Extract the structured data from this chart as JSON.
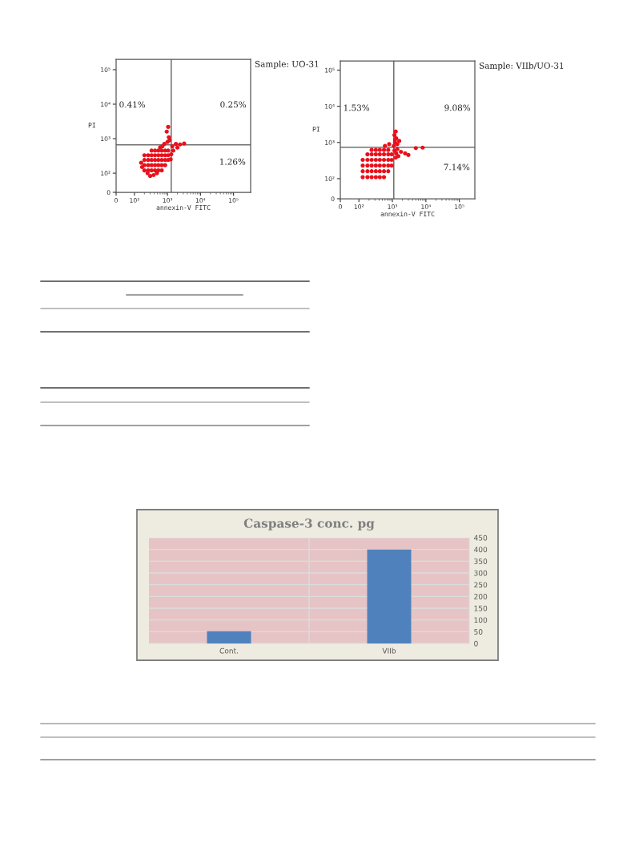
{
  "chart_data": [
    {
      "type": "scatter",
      "xlabel": "annexin-V FITC",
      "ylabel": "PI",
      "log": "xy",
      "marker": "circle",
      "xlim": [
        0,
        330000
      ],
      "ylim": [
        0,
        200000
      ],
      "xticks": [
        0,
        {
          "value": 100,
          "label": "10²"
        },
        {
          "value": 1000,
          "label": "10³"
        },
        {
          "value": 10000,
          "label": "10⁴"
        },
        {
          "value": 100000,
          "label": "10⁵"
        }
      ],
      "yticks": [
        0,
        {
          "value": 100,
          "label": "10²"
        },
        {
          "value": 1000,
          "label": "10³"
        },
        {
          "value": 10000,
          "label": "10⁴"
        },
        {
          "value": 100000,
          "label": "10⁵"
        }
      ],
      "series": [
        {
          "color": "#e8101c",
          "x": [
            200,
            260,
            330,
            420,
            530,
            670,
            200,
            260,
            330,
            420,
            530,
            670,
            850,
            200,
            260,
            330,
            420,
            530,
            670,
            850,
            1050,
            200,
            260,
            330,
            420,
            530,
            670,
            850,
            1050,
            330,
            420,
            530,
            670,
            850,
            1050,
            300,
            380,
            480,
            250,
            160,
            170,
            700,
            800,
            1000,
            1100,
            950,
            1050,
            1150,
            600,
            1400,
            1800,
            2400,
            3200,
            1500,
            1300,
            2000,
            1250
          ],
          "values": [
            120,
            120,
            120,
            120,
            120,
            120,
            170,
            170,
            170,
            170,
            170,
            170,
            170,
            240,
            240,
            240,
            240,
            240,
            240,
            240,
            240,
            330,
            330,
            330,
            330,
            330,
            330,
            330,
            330,
            450,
            450,
            450,
            450,
            450,
            450,
            85,
            90,
            100,
            100,
            200,
            150,
            600,
            700,
            800,
            1100,
            1600,
            2200,
            900,
            560,
            600,
            700,
            680,
            720,
            450,
            350,
            550,
            250
          ]
        }
      ],
      "ref_lines": [
        {
          "axis": "x",
          "value": 1300,
          "color": "#707070"
        },
        {
          "axis": "y",
          "value": 660,
          "color": "#707070"
        }
      ],
      "annotations": [
        "Sample: UO-31",
        "0.41%",
        "0.25%",
        "1.26%"
      ]
    },
    {
      "type": "scatter",
      "xlabel": "annexin-V FITC",
      "ylabel": "PI",
      "log": "xy",
      "marker": "circle",
      "xlim": [
        0,
        290000
      ],
      "ylim": [
        0,
        180000
      ],
      "xticks": [
        0,
        {
          "value": 100,
          "label": "10²"
        },
        {
          "value": 1000,
          "label": "10³"
        },
        {
          "value": 10000,
          "label": "10⁴"
        },
        {
          "value": 100000,
          "label": "10⁵"
        }
      ],
      "yticks": [
        0,
        {
          "value": 100,
          "label": "10²"
        },
        {
          "value": 1000,
          "label": "10³"
        },
        {
          "value": 10000,
          "label": "10⁴"
        },
        {
          "value": 100000,
          "label": "10⁵"
        }
      ],
      "series": [
        {
          "color": "#e8101c",
          "x": [
            130,
            180,
            240,
            320,
            420,
            560,
            130,
            180,
            240,
            320,
            420,
            560,
            750,
            130,
            180,
            240,
            320,
            420,
            560,
            750,
            950,
            130,
            180,
            240,
            320,
            420,
            560,
            750,
            950,
            180,
            240,
            320,
            420,
            560,
            750,
            950,
            240,
            320,
            420,
            560,
            750,
            1100,
            1200,
            1300,
            1150,
            1400,
            1250,
            1600,
            1200,
            1150,
            1300,
            1500,
            1250,
            1800,
            2400,
            3000,
            1400,
            5000,
            8000,
            600,
            800
          ],
          "values": [
            110,
            110,
            110,
            110,
            110,
            110,
            160,
            160,
            160,
            160,
            160,
            160,
            160,
            230,
            230,
            230,
            230,
            230,
            230,
            230,
            230,
            330,
            330,
            330,
            330,
            330,
            330,
            330,
            330,
            470,
            470,
            470,
            470,
            470,
            470,
            470,
            620,
            620,
            620,
            620,
            620,
            800,
            1000,
            1300,
            1600,
            900,
            2000,
            1100,
            1200,
            600,
            500,
            420,
            380,
            550,
            500,
            450,
            650,
            700,
            720,
            800,
            900
          ]
        }
      ],
      "ref_lines": [
        {
          "axis": "x",
          "value": 1100,
          "color": "#707070"
        },
        {
          "axis": "y",
          "value": 740,
          "color": "#707070"
        }
      ],
      "annotations": [
        "Sample: VIIb/UO-31",
        "1.53%",
        "9.08%",
        "7.14%"
      ]
    },
    {
      "type": "bar",
      "title": "Caspase-3 conc. pg",
      "categories": [
        "Cont.",
        "VIIb"
      ],
      "values": [
        52,
        400
      ],
      "color": "#4f81bd",
      "ylim": [
        0,
        450
      ],
      "yticks": [
        0,
        50,
        100,
        150,
        200,
        250,
        300,
        350,
        400,
        450
      ],
      "grid": true
    }
  ]
}
